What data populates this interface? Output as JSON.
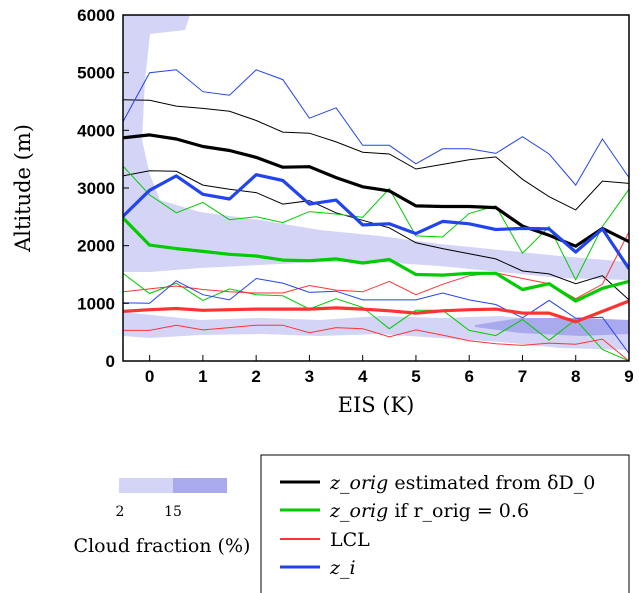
{
  "chart_data": {
    "type": "line",
    "xlabel": "EIS (K)",
    "ylabel": "Altitude (m)",
    "xlim": [
      -0.5,
      9
    ],
    "ylim": [
      0,
      6000
    ],
    "xticks": [
      "0",
      "1",
      "2",
      "3",
      "4",
      "5",
      "6",
      "7",
      "8",
      "9"
    ],
    "yticks": [
      "0",
      "1000",
      "2000",
      "3000",
      "4000",
      "5000",
      "6000"
    ],
    "x": [
      -0.5,
      0,
      0.5,
      1,
      1.5,
      2,
      2.5,
      3,
      3.5,
      4,
      4.5,
      5,
      5.5,
      6,
      6.5,
      7,
      7.5,
      8,
      8.5,
      9
    ],
    "series": [
      {
        "key": "zorig_dD0",
        "color": "#000000",
        "values": [
          3870,
          3920,
          3850,
          3720,
          3650,
          3530,
          3360,
          3370,
          3180,
          3020,
          2950,
          2690,
          2680,
          2680,
          2660,
          2340,
          2180,
          1990,
          2300,
          2070
        ],
        "upper": [
          4530,
          4520,
          4420,
          4380,
          4330,
          4170,
          3970,
          3950,
          3800,
          3620,
          3590,
          3330,
          3410,
          3490,
          3540,
          3150,
          2850,
          2620,
          3120,
          3080
        ],
        "lower": [
          3210,
          3300,
          3290,
          3050,
          2980,
          2920,
          2720,
          2780,
          2570,
          2440,
          2310,
          2050,
          1950,
          1860,
          1770,
          1560,
          1510,
          1340,
          1480,
          1060
        ]
      },
      {
        "key": "zorig_r06",
        "color": "#00cc00",
        "values": [
          2480,
          2010,
          1950,
          1900,
          1850,
          1820,
          1750,
          1740,
          1770,
          1700,
          1760,
          1500,
          1490,
          1520,
          1520,
          1240,
          1340,
          1040,
          1260,
          1380
        ],
        "upper": [
          3380,
          2880,
          2570,
          2750,
          2450,
          2500,
          2400,
          2590,
          2550,
          2490,
          2990,
          2170,
          2150,
          2560,
          2690,
          1870,
          2330,
          1410,
          2330,
          2980
        ],
        "lower": [
          1520,
          1170,
          1350,
          1050,
          1250,
          1150,
          1130,
          900,
          1080,
          930,
          560,
          880,
          880,
          530,
          440,
          720,
          360,
          720,
          200,
          0
        ]
      },
      {
        "key": "lcl",
        "color": "#ff3333",
        "values": [
          860,
          890,
          910,
          880,
          890,
          900,
          900,
          900,
          920,
          900,
          870,
          830,
          870,
          890,
          900,
          830,
          830,
          680,
          860,
          1040
        ],
        "upper": [
          1200,
          1250,
          1300,
          1240,
          1200,
          1180,
          1180,
          1310,
          1230,
          1200,
          1380,
          1150,
          1330,
          1480,
          1530,
          1430,
          1340,
          1080,
          1330,
          2240
        ],
        "lower": [
          530,
          530,
          620,
          540,
          580,
          620,
          620,
          490,
          580,
          560,
          420,
          540,
          450,
          350,
          300,
          270,
          310,
          290,
          380,
          0
        ]
      },
      {
        "key": "zi",
        "color": "#2244ee",
        "values": [
          2510,
          2960,
          3210,
          2890,
          2810,
          3230,
          3130,
          2720,
          2790,
          2360,
          2380,
          2210,
          2420,
          2380,
          2280,
          2300,
          2290,
          1890,
          2290,
          1600
        ],
        "upper": [
          4150,
          5000,
          5050,
          4670,
          4610,
          5050,
          4880,
          4210,
          4390,
          3740,
          3740,
          3420,
          3680,
          3680,
          3600,
          3890,
          3590,
          3050,
          3850,
          3180
        ],
        "lower": [
          1010,
          1000,
          1390,
          1150,
          1060,
          1430,
          1350,
          1190,
          1210,
          1060,
          1060,
          1060,
          1180,
          1060,
          980,
          750,
          1050,
          740,
          760,
          130
        ]
      }
    ],
    "legend": {
      "placement": "bottom-right",
      "entries": [
        {
          "key": "zorig_dD0",
          "math": "z_orig",
          "text": " estimated from δD_0"
        },
        {
          "key": "zorig_r06",
          "math": "z_orig",
          "text": " if r_orig = 0.6"
        },
        {
          "key": "lcl",
          "math": "",
          "text": "LCL"
        },
        {
          "key": "zi",
          "math": "z_i",
          "text": ""
        }
      ]
    },
    "cloud_fraction": {
      "title": "Cloud fraction (%)",
      "levels": [
        "2",
        "15"
      ],
      "colors": [
        "#d4d4f7",
        "#a9a9ee"
      ]
    }
  }
}
